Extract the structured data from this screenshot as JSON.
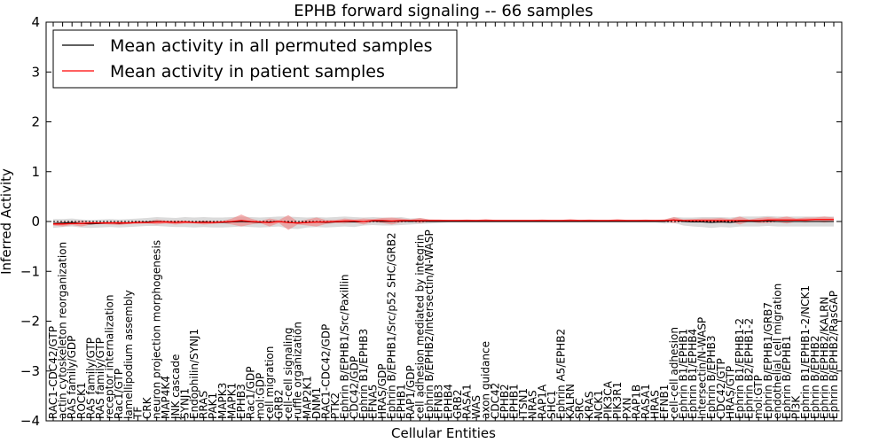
{
  "chart_data": {
    "type": "line",
    "title": "EPHB forward signaling -- 66 samples",
    "xlabel": "Cellular Entities",
    "ylabel": "Inferred Activity",
    "ylim": [
      -4,
      4
    ],
    "yticks": [
      -4,
      -3,
      -2,
      -1,
      0,
      1,
      2,
      3,
      4
    ],
    "ytick_labels": [
      "−4",
      "−3",
      "−2",
      "−1",
      "0",
      "1",
      "2",
      "3",
      "4"
    ],
    "legend_position": "upper-left",
    "colors": {
      "permuted": "#000000",
      "patient": "#ff0000",
      "patient_band": "#f08080",
      "permuted_band": "#bdbdbd"
    },
    "categories": [
      "RAC1-CDC42/GTP",
      "actin cytoskeleton reorganization",
      "RAS family/GDP",
      "ROCK1",
      "RAS family/GTP",
      "RAS family/GTP",
      "receptor internalization",
      "Rac1/GTP",
      "lamellipodium assembly",
      "TF",
      "CRK",
      "neuron projection morphogenesis",
      "MAP4K4",
      "JNK cascade",
      "SYNJ1",
      "Endophilin/SYNJ1",
      "RRAS",
      "PAK1",
      "MAPK3",
      "MAPK1",
      "EPHB3",
      "Rac1/GDP",
      "mol:GDP",
      "cell migration",
      "GRB2",
      "cell-cell signaling",
      "ruffle organization",
      "MAP2K1",
      "DNM1",
      "RAC1-CDC42/GDP",
      "PTK2",
      "Ephrin B/EPHB1/Src/Paxillin",
      "CDC42/GDP",
      "Ephrin B1/EPHB3",
      "EFNA5",
      "HRAS/GDP",
      "Ephrin B/EPHB1/Src/p52 SHC/GRB2",
      "EPHB1",
      "RAP1/GDP",
      "cell adhesion mediated by integrin",
      "Ephrin B/EPHB2/Intersectin/N-WASP",
      "EFNB3",
      "EPHB4",
      "GRB2",
      "RASA1",
      "WAS",
      "axon guidance",
      "CDC42",
      "EPHB2",
      "EPHB1",
      "ITSN1",
      "NRAS",
      "RAP1A",
      "SHC1",
      "Ephrin A5/EPHB2",
      "KALRN",
      "SRC",
      "KRAS",
      "NCK1",
      "PIK3CA",
      "PIK3R1",
      "PXN",
      "RAP1B",
      "RASA1",
      "HRAS",
      "EFNB1",
      "cell-cell adhesion",
      "Ephrin B1/EPHB1",
      "Ephrin B1/EPHB4",
      "Intersectin/N-WASP",
      "Ephrin B/EPHB3",
      "CDC42/GTP",
      "HRAS/GTP",
      "Ephrin B1/EPHB1-2",
      "Ephrin B2/EPHB1-2",
      "mol:GTP",
      "Ephrin B/EPHB1/GRB7",
      "endothelial cell migration",
      "Ephrin B/EPHB1",
      "PI3K",
      "Ephrin B1/EPHB1-2/NCK1",
      "Ephrin B/EPHB2",
      "Ephrin B/EPHB2/KALRN",
      "Ephrin B/EPHB2/RasGAP"
    ],
    "series": [
      {
        "name": "Mean activity in all permuted samples",
        "color": "#000000",
        "values": [
          -0.04,
          -0.03,
          -0.02,
          -0.04,
          -0.05,
          -0.04,
          -0.03,
          -0.04,
          -0.03,
          -0.02,
          -0.01,
          0.0,
          -0.01,
          -0.02,
          -0.01,
          -0.02,
          -0.01,
          -0.02,
          -0.02,
          -0.01,
          0.0,
          -0.01,
          -0.02,
          -0.01,
          0.0,
          -0.02,
          -0.03,
          -0.02,
          -0.01,
          -0.02,
          -0.01,
          0.0,
          -0.01,
          0.0,
          0.01,
          0.0,
          0.0,
          0.01,
          0.0,
          0.01,
          0.0,
          0.0,
          0.0,
          0.0,
          0.0,
          0.0,
          0.0,
          0.0,
          0.0,
          0.0,
          0.0,
          0.0,
          0.0,
          0.0,
          0.0,
          0.0,
          0.0,
          0.0,
          0.0,
          0.0,
          0.0,
          0.0,
          0.0,
          0.0,
          0.0,
          0.0,
          0.03,
          0.0,
          -0.01,
          -0.01,
          -0.02,
          -0.01,
          -0.02,
          0.0,
          0.0,
          0.0,
          0.01,
          0.0,
          0.0,
          0.0,
          0.0,
          0.0,
          0.0,
          0.0
        ],
        "band": [
          0.09,
          0.08,
          0.08,
          0.08,
          0.08,
          0.08,
          0.08,
          0.08,
          0.08,
          0.08,
          0.08,
          0.09,
          0.09,
          0.09,
          0.1,
          0.1,
          0.1,
          0.1,
          0.1,
          0.1,
          0.1,
          0.1,
          0.1,
          0.1,
          0.1,
          0.12,
          0.12,
          0.1,
          0.1,
          0.1,
          0.1,
          0.1,
          0.1,
          0.08,
          0.08,
          0.08,
          0.08,
          0.08,
          0.06,
          0.06,
          0.04,
          0.03,
          0.02,
          0.02,
          0.02,
          0.02,
          0.02,
          0.02,
          0.02,
          0.02,
          0.02,
          0.02,
          0.02,
          0.02,
          0.02,
          0.02,
          0.02,
          0.02,
          0.02,
          0.02,
          0.02,
          0.02,
          0.02,
          0.02,
          0.02,
          0.04,
          0.06,
          0.08,
          0.09,
          0.1,
          0.11,
          0.1,
          0.1,
          0.1,
          0.1,
          0.1,
          0.1,
          0.1,
          0.1,
          0.1,
          0.1,
          0.1,
          0.1,
          0.1
        ]
      },
      {
        "name": "Mean activity in patient samples",
        "color": "#ff0000",
        "values": [
          -0.05,
          -0.05,
          -0.04,
          -0.04,
          -0.03,
          -0.03,
          -0.03,
          -0.03,
          -0.03,
          -0.02,
          -0.02,
          -0.01,
          -0.01,
          -0.02,
          -0.01,
          -0.02,
          -0.02,
          -0.02,
          -0.01,
          0.0,
          0.02,
          0.0,
          -0.01,
          -0.02,
          0.0,
          -0.02,
          -0.03,
          -0.02,
          -0.01,
          -0.01,
          0.0,
          0.01,
          0.01,
          0.0,
          0.02,
          0.02,
          0.01,
          0.02,
          0.02,
          0.02,
          0.02,
          0.02,
          0.02,
          0.02,
          0.02,
          0.02,
          0.02,
          0.02,
          0.02,
          0.02,
          0.02,
          0.02,
          0.02,
          0.02,
          0.02,
          0.02,
          0.02,
          0.02,
          0.02,
          0.02,
          0.02,
          0.02,
          0.02,
          0.02,
          0.02,
          0.02,
          0.03,
          0.02,
          0.02,
          0.02,
          0.02,
          0.02,
          0.02,
          0.02,
          0.02,
          0.02,
          0.03,
          0.03,
          0.03,
          0.03,
          0.03,
          0.04,
          0.04,
          0.04
        ],
        "band": [
          0.03,
          0.05,
          0.03,
          0.06,
          0.03,
          0.02,
          0.03,
          0.04,
          0.02,
          0.03,
          0.02,
          0.05,
          0.03,
          0.04,
          0.03,
          0.02,
          0.04,
          0.03,
          0.02,
          0.06,
          0.12,
          0.06,
          0.02,
          0.08,
          0.03,
          0.15,
          0.03,
          0.06,
          0.09,
          0.04,
          0.03,
          0.05,
          0.03,
          0.06,
          0.03,
          0.05,
          0.07,
          0.04,
          0.02,
          0.05,
          0.02,
          0.02,
          0.01,
          0.01,
          0.02,
          0.01,
          0.03,
          0.01,
          0.01,
          0.01,
          0.01,
          0.01,
          0.02,
          0.01,
          0.01,
          0.03,
          0.01,
          0.02,
          0.01,
          0.01,
          0.03,
          0.01,
          0.01,
          0.02,
          0.01,
          0.02,
          0.06,
          0.02,
          0.03,
          0.04,
          0.04,
          0.05,
          0.03,
          0.08,
          0.02,
          0.05,
          0.06,
          0.04,
          0.07,
          0.03,
          0.05,
          0.04,
          0.06,
          0.04
        ]
      }
    ]
  }
}
